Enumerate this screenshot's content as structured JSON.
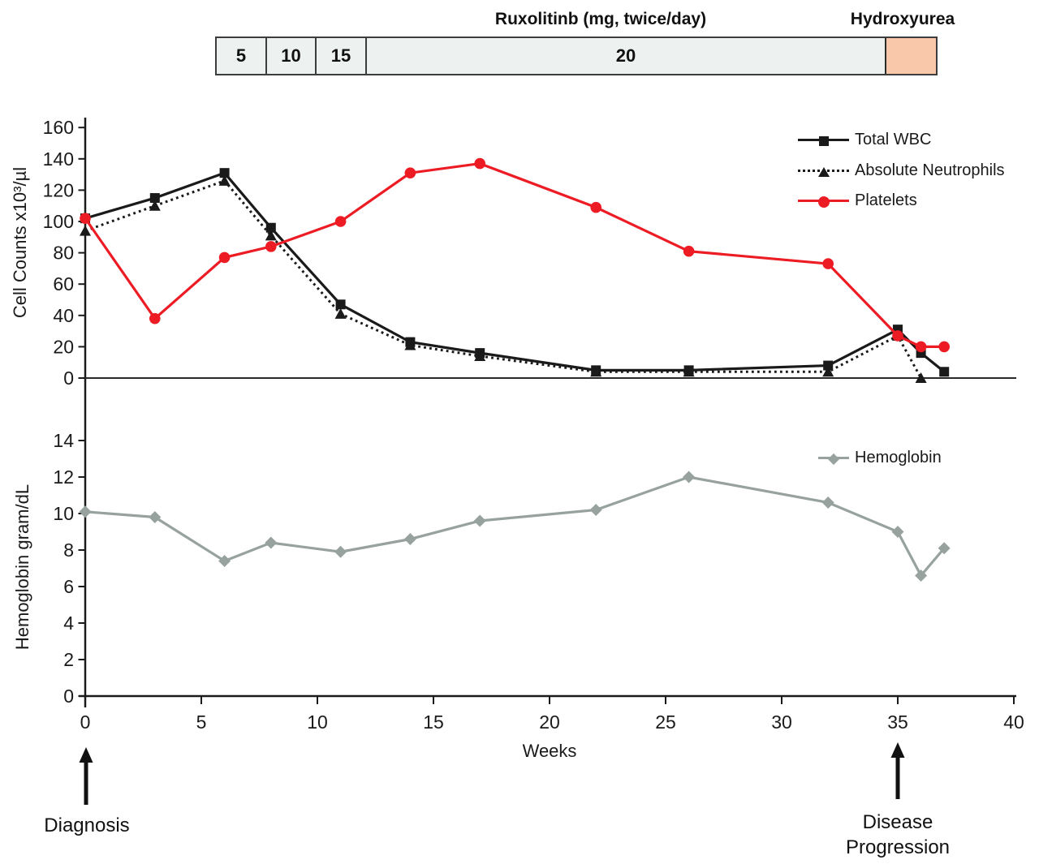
{
  "figure": {
    "treatment_bar": {
      "ruxolitinib_title": "Ruxolitinb (mg, twice/day)",
      "hydroxyurea_title": "Hydroxyurea",
      "dose_segments": [
        "5",
        "10",
        "15",
        "20"
      ],
      "bar_fill": "#edf1f0",
      "hydroxyurea_fill": "#f9c7a9",
      "border_color": "#3d3d3d"
    },
    "annotations": {
      "diagnosis": "Diagnosis",
      "disease_progression": [
        "Disease",
        "Progression"
      ]
    },
    "colors": {
      "black": "#1a1a1a",
      "red": "#ed1c24",
      "gray": "#97a29e"
    }
  },
  "chart_data": [
    {
      "type": "line",
      "title": "",
      "ylabel": "Cell Counts x10³/µl",
      "xlabel": "",
      "ylim": [
        0,
        160
      ],
      "yticks": [
        0,
        20,
        40,
        60,
        80,
        100,
        120,
        140,
        160
      ],
      "xlim": [
        0,
        40
      ],
      "grid": false,
      "legend_position": "top-right",
      "series": [
        {
          "name": "Total WBC",
          "color": "#1a1a1a",
          "marker": "square",
          "line_style": "solid",
          "points": [
            [
              0,
              102
            ],
            [
              3,
              115
            ],
            [
              6,
              131
            ],
            [
              8,
              96
            ],
            [
              11,
              47
            ],
            [
              14,
              23
            ],
            [
              17,
              16
            ],
            [
              22,
              5
            ],
            [
              26,
              5
            ],
            [
              32,
              8
            ],
            [
              35,
              31
            ],
            [
              36,
              16
            ],
            [
              37,
              4
            ]
          ]
        },
        {
          "name": "Absolute Neutrophils",
          "color": "#1a1a1a",
          "marker": "triangle",
          "line_style": "dotted",
          "points": [
            [
              0,
              94
            ],
            [
              3,
              110
            ],
            [
              6,
              126
            ],
            [
              8,
              91
            ],
            [
              11,
              41
            ],
            [
              14,
              21
            ],
            [
              17,
              14
            ],
            [
              22,
              4
            ],
            [
              26,
              4
            ],
            [
              32,
              4
            ],
            [
              35,
              27
            ],
            [
              36,
              0
            ]
          ]
        },
        {
          "name": "Platelets",
          "color": "#ed1c24",
          "marker": "circle",
          "line_style": "solid",
          "points": [
            [
              0,
              102
            ],
            [
              3,
              38
            ],
            [
              6,
              77
            ],
            [
              8,
              84
            ],
            [
              11,
              100
            ],
            [
              14,
              131
            ],
            [
              17,
              137
            ],
            [
              22,
              109
            ],
            [
              26,
              81
            ],
            [
              32,
              73
            ],
            [
              35,
              27
            ],
            [
              36,
              20
            ],
            [
              37,
              20
            ]
          ]
        }
      ]
    },
    {
      "type": "line",
      "title": "",
      "ylabel": "Hemoglobin gram/dL",
      "xlabel": "Weeks",
      "ylim": [
        0,
        16
      ],
      "yticks": [
        0,
        2,
        4,
        6,
        8,
        10,
        12,
        14
      ],
      "xticks": [
        0,
        5,
        10,
        15,
        20,
        25,
        30,
        35,
        40
      ],
      "xlim": [
        0,
        40
      ],
      "grid": false,
      "legend_position": "right",
      "series": [
        {
          "name": "Hemoglobin",
          "color": "#97a29e",
          "marker": "diamond",
          "line_style": "solid",
          "points": [
            [
              0,
              10.1
            ],
            [
              3,
              9.8
            ],
            [
              6,
              7.4
            ],
            [
              8,
              8.4
            ],
            [
              11,
              7.9
            ],
            [
              14,
              8.6
            ],
            [
              17,
              9.6
            ],
            [
              22,
              10.2
            ],
            [
              26,
              12
            ],
            [
              32,
              10.6
            ],
            [
              35,
              9
            ],
            [
              36,
              6.6
            ],
            [
              37,
              8.1
            ]
          ]
        }
      ]
    }
  ]
}
